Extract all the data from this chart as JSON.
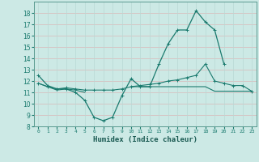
{
  "xlabel": "Humidex (Indice chaleur)",
  "x_values": [
    0,
    1,
    2,
    3,
    4,
    5,
    6,
    7,
    8,
    9,
    10,
    11,
    12,
    13,
    14,
    15,
    16,
    17,
    18,
    19,
    20,
    21,
    22,
    23
  ],
  "line1_y": [
    12.5,
    11.6,
    11.3,
    11.3,
    11.0,
    10.3,
    8.8,
    8.5,
    8.8,
    10.7,
    12.2,
    11.5,
    11.5,
    13.5,
    15.3,
    16.5,
    16.5,
    18.2,
    17.2,
    16.5,
    13.5,
    null,
    null,
    null
  ],
  "line2_y": [
    11.8,
    11.5,
    11.2,
    11.3,
    11.2,
    11.0,
    null,
    null,
    null,
    null,
    11.5,
    11.5,
    11.5,
    11.5,
    11.5,
    11.5,
    11.5,
    11.5,
    11.5,
    11.1,
    11.1,
    11.1,
    11.1,
    11.1
  ],
  "line3_y": [
    11.8,
    11.5,
    11.3,
    11.4,
    11.3,
    11.2,
    11.2,
    11.2,
    11.2,
    11.3,
    11.5,
    11.6,
    11.7,
    11.8,
    12.0,
    12.1,
    12.3,
    12.5,
    13.5,
    12.0,
    11.8,
    11.6,
    11.6,
    11.1
  ],
  "ylim": [
    8,
    19
  ],
  "yticks": [
    8,
    9,
    10,
    11,
    12,
    13,
    14,
    15,
    16,
    17,
    18
  ],
  "line_color": "#1a7a6e",
  "bg_color": "#cce9e5",
  "grid_color_h": "#d9b8b8",
  "grid_color_v": "#b8d9d5"
}
